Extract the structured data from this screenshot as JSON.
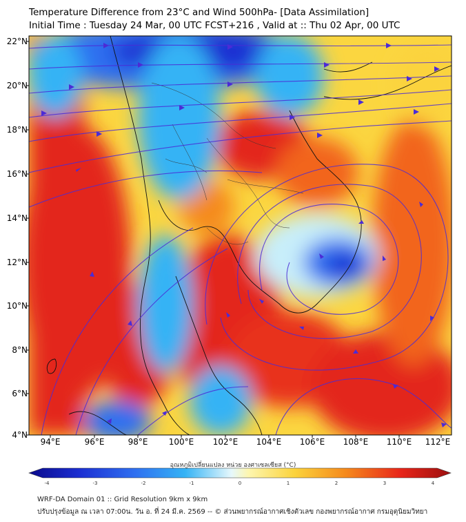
{
  "title_line1": "Temperature Difference from 23°C and Wind 500hPa- [Data Assimilation]",
  "title_line2": "Initial Time : Tuesday 24 Mar, 00 UTC FCST+216 , Valid at ::  Thu 02 Apr, 00 UTC",
  "lat_labels": [
    "22°N",
    "20°N",
    "18°N",
    "16°N",
    "14°N",
    "12°N",
    "10°N",
    "8°N",
    "6°N",
    "4°N"
  ],
  "lon_labels": [
    "94°E",
    "96°E",
    "98°E",
    "100°E",
    "102°E",
    "104°E",
    "106°E",
    "108°E",
    "110°E",
    "112°E"
  ],
  "colorbar": {
    "title": "อุณหภูมิเปลี่ยนแปลง หน่วย องศาเซลเซียส (°C)",
    "ticks": [
      "-4",
      "-3",
      "-2",
      "-1",
      "0",
      "1",
      "2",
      "3",
      "4"
    ],
    "colors": [
      "#0a0a8c",
      "#1c2fd2",
      "#2f6ff0",
      "#35b3f5",
      "#c8eefa",
      "#fdf6b0",
      "#fbd33c",
      "#f58a1c",
      "#e8261a",
      "#9c0f0f"
    ]
  },
  "footer_line1": "WRF-DA Domain 01 :: Grid Resolution 9km x 9km",
  "footer_line2": "ปรับปรุงข้อมูล ณ เวลา 07:00น. วัน อ. ที่ 24 มี.ค. 2569 -- © ส่วนพยากรณ์อากาศเชิงตัวเลข กองพยากรณ์อากาศ กรมอุตุนิยมวิทยา"
}
